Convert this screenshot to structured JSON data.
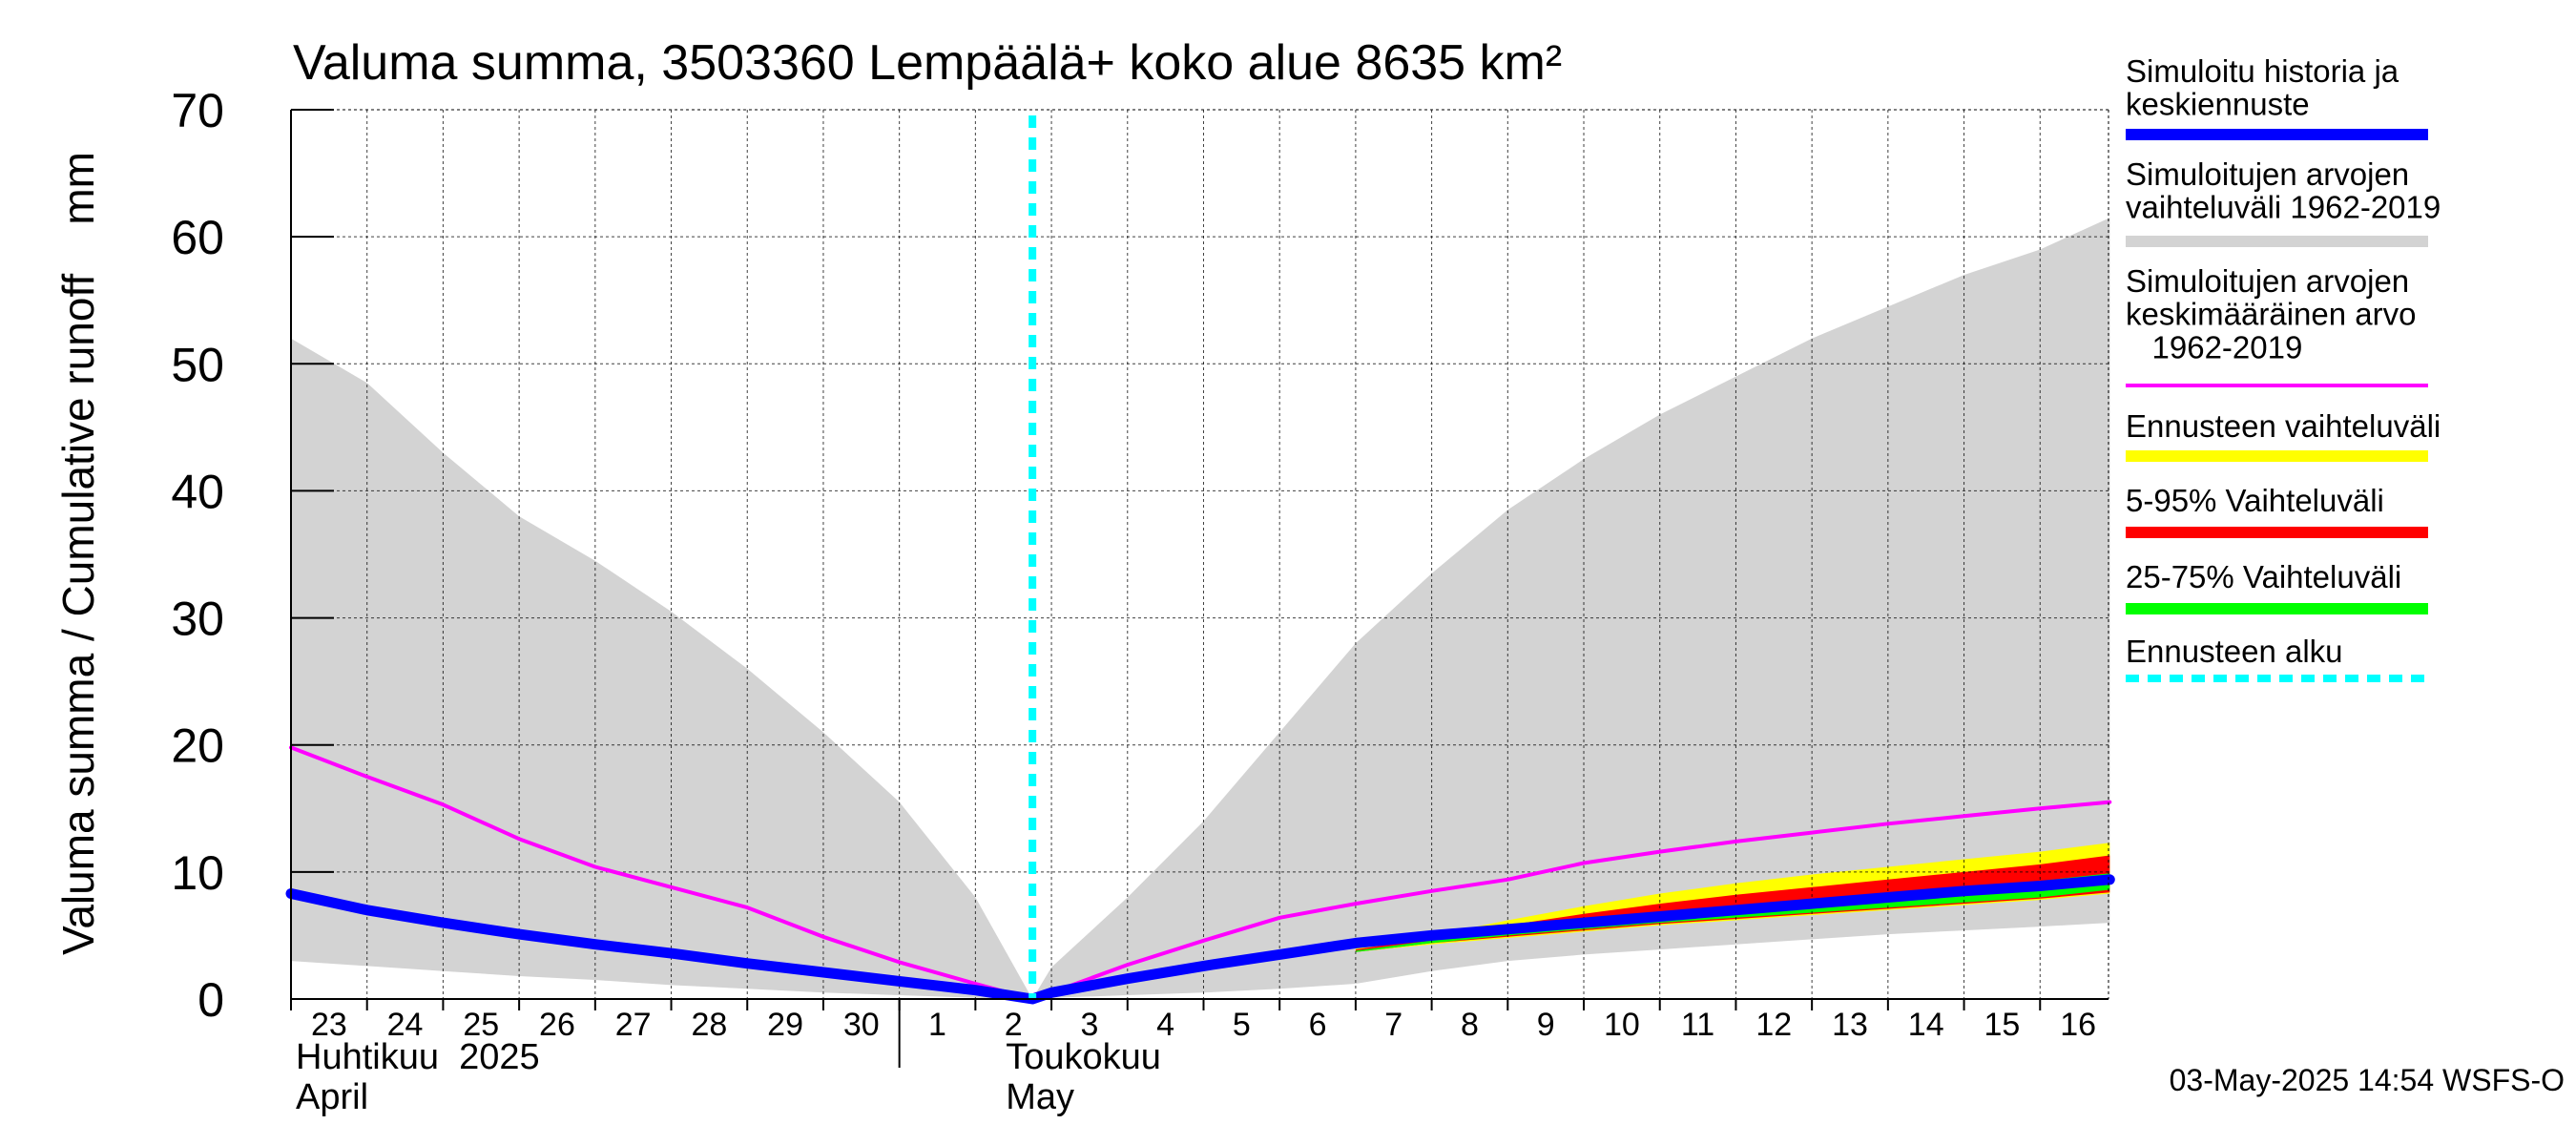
{
  "chart_data": {
    "type": "area",
    "title": "Valuma summa, 3503360 Lempäälä+ koko alue 8635 km²",
    "ylabel": "Valuma summa / Cumulative runoff    mm",
    "ylim": [
      0,
      70
    ],
    "yticks": [
      "0",
      "10",
      "20",
      "30",
      "40",
      "50",
      "60",
      "70"
    ],
    "x_start": "2025-04-23",
    "x_end": "2025-05-16",
    "x_tick_labels": [
      "23",
      "24",
      "25",
      "26",
      "27",
      "28",
      "29",
      "30",
      "1",
      "2",
      "3",
      "4",
      "5",
      "6",
      "7",
      "8",
      "9",
      "10",
      "11",
      "12",
      "13",
      "14",
      "15",
      "16"
    ],
    "month_labels": [
      {
        "fi": "Huhtikuu  2025",
        "en": "April"
      },
      {
        "fi": "Toukokuu",
        "en": "May"
      }
    ],
    "forecast_start": "2025-05-02T18:00",
    "grid": true,
    "legend_position": "right",
    "footer": "03-May-2025 14:54 WSFS-O",
    "legend": [
      {
        "label": "Simuloitu historia ja\nkeskiennuste",
        "color": "#0000ff",
        "style": "thick"
      },
      {
        "label": "Simuloitujen arvojen\nvaihteluväli 1962-2019",
        "color": "#d3d3d3",
        "style": "thick"
      },
      {
        "label": "Simuloitujen arvojen\nkeskimääräinen arvo\n   1962-2019",
        "color": "#ff00ff",
        "style": "thin"
      },
      {
        "label": "Ennusteen vaihteluväli",
        "color": "#ffff00",
        "style": "thick"
      },
      {
        "label": "5-95% Vaihteluväli",
        "color": "#ff0000",
        "style": "thick"
      },
      {
        "label": "25-75% Vaihteluväli",
        "color": "#00ff00",
        "style": "thick"
      },
      {
        "label": "Ennusteen alku",
        "color": "#00ffff",
        "style": "dashed"
      }
    ],
    "series": [
      {
        "name": "Simuloitujen arvojen vaihteluväli 1962-2019",
        "kind": "band",
        "color": "#d3d3d3",
        "x": [
          "2025-04-23",
          "2025-04-24",
          "2025-04-25",
          "2025-04-26",
          "2025-04-27",
          "2025-04-28",
          "2025-04-29",
          "2025-04-30",
          "2025-05-01",
          "2025-05-02",
          "2025-05-02T18:00",
          "2025-05-03",
          "2025-05-04",
          "2025-05-05",
          "2025-05-06",
          "2025-05-07",
          "2025-05-08",
          "2025-05-09",
          "2025-05-10",
          "2025-05-11",
          "2025-05-12",
          "2025-05-13",
          "2025-05-14",
          "2025-05-15",
          "2025-05-16",
          "2025-05-16T22:00"
        ],
        "upper": [
          52,
          48.5,
          43,
          38,
          34.5,
          30.5,
          26,
          21,
          15.5,
          8,
          0,
          2.5,
          8,
          14,
          21,
          28,
          33.5,
          38.5,
          42.5,
          46,
          49,
          52,
          54.5,
          57,
          59,
          61.5
        ],
        "lower": [
          3,
          2.6,
          2.2,
          1.8,
          1.5,
          1.1,
          0.8,
          0.5,
          0.3,
          0.1,
          0,
          0.1,
          0.3,
          0.5,
          0.8,
          1.2,
          2.2,
          3,
          3.5,
          3.9,
          4.3,
          4.7,
          5.1,
          5.4,
          5.7,
          6
        ]
      },
      {
        "name": "Ennusteen vaihteluväli",
        "kind": "band",
        "color": "#ffff00",
        "x": [
          "2025-05-07",
          "2025-05-08",
          "2025-05-09",
          "2025-05-10",
          "2025-05-11",
          "2025-05-12",
          "2025-05-13",
          "2025-05-14",
          "2025-05-15",
          "2025-05-16",
          "2025-05-16T22:00"
        ],
        "upper": [
          4,
          5,
          6.2,
          7.3,
          8.3,
          9.1,
          9.8,
          10.4,
          11,
          11.6,
          12.3
        ],
        "lower": [
          3.7,
          4.3,
          4.8,
          5.3,
          5.8,
          6.2,
          6.6,
          7,
          7.4,
          7.8,
          8.3
        ]
      },
      {
        "name": "5-95% Vaihteluväli",
        "kind": "band",
        "color": "#ff0000",
        "x": [
          "2025-05-07",
          "2025-05-08",
          "2025-05-09",
          "2025-05-10",
          "2025-05-11",
          "2025-05-12",
          "2025-05-13",
          "2025-05-14",
          "2025-05-15",
          "2025-05-16",
          "2025-05-16T22:00"
        ],
        "upper": [
          3.9,
          4.8,
          5.8,
          6.7,
          7.5,
          8.2,
          8.8,
          9.4,
          10,
          10.6,
          11.3
        ],
        "lower": [
          3.7,
          4.4,
          4.9,
          5.4,
          5.9,
          6.3,
          6.7,
          7.1,
          7.5,
          7.9,
          8.4
        ]
      },
      {
        "name": "25-75% Vaihteluväli",
        "kind": "band",
        "color": "#00ff00",
        "x": [
          "2025-05-07",
          "2025-05-08",
          "2025-05-09",
          "2025-05-10",
          "2025-05-11",
          "2025-05-12",
          "2025-05-13",
          "2025-05-14",
          "2025-05-15",
          "2025-05-16",
          "2025-05-16T22:00"
        ],
        "upper": [
          3.8,
          4.6,
          5.4,
          6.1,
          6.8,
          7.3,
          7.8,
          8.3,
          8.8,
          9.3,
          9.9
        ],
        "lower": [
          3.7,
          4.4,
          5,
          5.5,
          6,
          6.4,
          6.8,
          7.2,
          7.6,
          8,
          8.6
        ]
      },
      {
        "name": "Simuloitujen arvojen keskimääräinen arvo 1962-2019",
        "kind": "line",
        "color": "#ff00ff",
        "x": [
          "2025-04-23",
          "2025-04-24",
          "2025-04-25",
          "2025-04-26",
          "2025-04-27",
          "2025-04-28",
          "2025-04-29",
          "2025-04-30",
          "2025-05-01",
          "2025-05-02",
          "2025-05-02T18:00",
          "2025-05-03",
          "2025-05-04",
          "2025-05-05",
          "2025-05-06",
          "2025-05-07",
          "2025-05-08",
          "2025-05-09",
          "2025-05-10",
          "2025-05-11",
          "2025-05-12",
          "2025-05-13",
          "2025-05-14",
          "2025-05-15",
          "2025-05-16",
          "2025-05-16T22:00"
        ],
        "y": [
          19.8,
          17.5,
          15.3,
          12.6,
          10.4,
          8.8,
          7.2,
          4.9,
          2.9,
          1.2,
          0,
          0.5,
          2.7,
          4.6,
          6.4,
          7.5,
          8.5,
          9.4,
          10.7,
          11.6,
          12.4,
          13.1,
          13.8,
          14.4,
          15,
          15.5
        ]
      },
      {
        "name": "Simuloitu historia ja keskiennuste",
        "kind": "line",
        "color": "#0000ff",
        "x": [
          "2025-04-23",
          "2025-04-24",
          "2025-04-25",
          "2025-04-26",
          "2025-04-27",
          "2025-04-28",
          "2025-04-29",
          "2025-04-30",
          "2025-05-01",
          "2025-05-02",
          "2025-05-02T18:00",
          "2025-05-03",
          "2025-05-04",
          "2025-05-05",
          "2025-05-06",
          "2025-05-07",
          "2025-05-08",
          "2025-05-09",
          "2025-05-10",
          "2025-05-11",
          "2025-05-12",
          "2025-05-13",
          "2025-05-14",
          "2025-05-15",
          "2025-05-16",
          "2025-05-16T22:00"
        ],
        "y": [
          8.3,
          7,
          6,
          5.1,
          4.3,
          3.6,
          2.8,
          2.1,
          1.4,
          0.7,
          0,
          0.5,
          1.6,
          2.6,
          3.5,
          4.4,
          5,
          5.5,
          6,
          6.5,
          7,
          7.5,
          8,
          8.5,
          8.9,
          9.4
        ]
      }
    ]
  }
}
